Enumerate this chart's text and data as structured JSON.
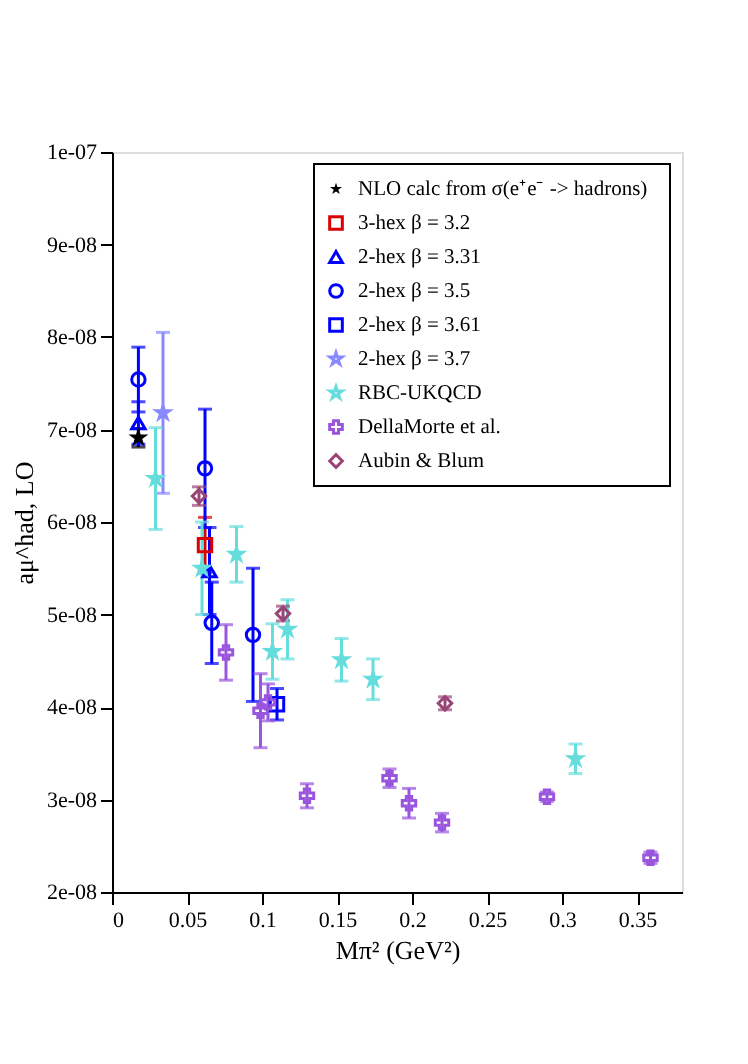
{
  "chart_data": {
    "type": "scatter",
    "xlabel": "Mπ² (GeV²)",
    "ylabel": "aμ^had, LO",
    "legend": "top right",
    "grid": false,
    "xlim": [
      0,
      0.38
    ],
    "xticks": [
      0,
      0.05,
      0.1,
      0.15,
      0.2,
      0.25,
      0.3,
      0.35
    ],
    "ylim": [
      2e-08,
      1e-07
    ],
    "yticks": [
      {
        "value": 2e-08,
        "label": "2e-08"
      },
      {
        "value": 3e-08,
        "label": "3e-08"
      },
      {
        "value": 4e-08,
        "label": "4e-08"
      },
      {
        "value": 5e-08,
        "label": "5e-08"
      },
      {
        "value": 6e-08,
        "label": "6e-08"
      },
      {
        "value": 7e-08,
        "label": "7e-08"
      },
      {
        "value": 8e-08,
        "label": "8e-08"
      },
      {
        "value": 9e-08,
        "label": "9e-08"
      },
      {
        "value": 1e-07,
        "label": "1e-07"
      }
    ],
    "series": [
      {
        "name": "NLO calc from σ(e⁺e⁻ -> hadrons)",
        "color": "#000000",
        "marker": "star",
        "x": [
          0.0176
        ],
        "values": [
          6.91e-08
        ],
        "errors": [
          1e-09
        ]
      },
      {
        "name": "3-hex  β = 3.2",
        "color": "#dd0000",
        "marker": "square",
        "x": [
          0.062
        ],
        "values": [
          5.75e-08
        ],
        "errors": [
          3e-09
        ]
      },
      {
        "name": "2-hex  β = 3.31",
        "color": "#0000ff",
        "marker": "triangle",
        "x": [
          0.0176,
          0.065
        ],
        "values": [
          7.07e-08,
          5.47e-08
        ],
        "errors": [
          2.3e-09,
          4.7e-09
        ]
      },
      {
        "name": "2-hex  β = 3.5",
        "color": "#0000ff",
        "marker": "circle",
        "x": [
          0.0176,
          0.062,
          0.0665,
          0.094
        ],
        "values": [
          7.54e-08,
          6.58e-08,
          4.91e-08,
          4.78e-08
        ],
        "errors": [
          3.5e-09,
          6.4e-09,
          4.4e-09,
          7.2e-09
        ]
      },
      {
        "name": "2-hex  β = 3.61",
        "color": "#0000ff",
        "marker": "square",
        "x": [
          0.11
        ],
        "values": [
          4.03e-08
        ],
        "errors": [
          1.7e-09
        ]
      },
      {
        "name": "2-hex  β = 3.7",
        "color": "#8888ff",
        "marker": "star",
        "x": [
          0.034
        ],
        "values": [
          7.18e-08
        ],
        "errors": [
          8.7e-09
        ]
      },
      {
        "name": "RBC-UKQCD",
        "color": "#66dddd",
        "marker": "star",
        "x": [
          0.029,
          0.06,
          0.083,
          0.107,
          0.117,
          0.153,
          0.174,
          0.309
        ],
        "values": [
          6.47e-08,
          5.5e-08,
          5.65e-08,
          4.6e-08,
          4.84e-08,
          4.51e-08,
          4.3e-08,
          3.44e-08
        ],
        "errors": [
          5.5e-09,
          5e-09,
          3e-09,
          3e-09,
          3.2e-09,
          2.3e-09,
          2.2e-09,
          1.6e-09
        ]
      },
      {
        "name": "DellaMorte et al.",
        "color": "#9955dd",
        "marker": "cross",
        "x": [
          0.076,
          0.099,
          0.104,
          0.13,
          0.185,
          0.198,
          0.22,
          0.29,
          0.359
        ],
        "values": [
          4.59e-08,
          3.96e-08,
          4.05e-08,
          3.04e-08,
          3.23e-08,
          2.96e-08,
          2.75e-08,
          3.03e-08,
          2.37e-08
        ],
        "errors": [
          3e-09,
          4e-09,
          2e-09,
          1.3e-09,
          1e-09,
          1.6e-09,
          1e-09,
          5e-10,
          6e-10
        ]
      },
      {
        "name": "Aubin & Blum",
        "color": "#994477",
        "marker": "diamond",
        "x": [
          0.058,
          0.114,
          0.222
        ],
        "values": [
          6.28e-08,
          5.01e-08,
          4.04e-08
        ],
        "errors": [
          1e-09,
          8e-10,
          7e-10
        ]
      }
    ]
  }
}
